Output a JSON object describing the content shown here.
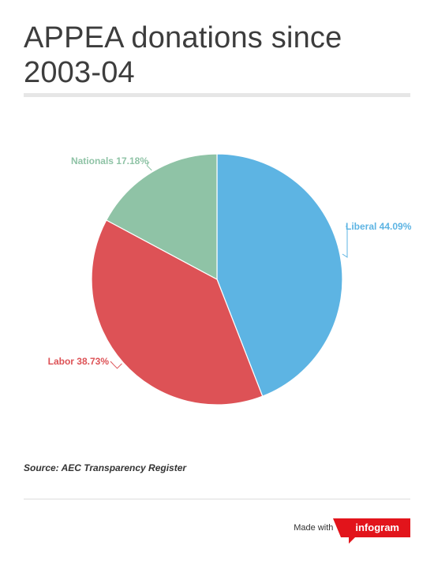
{
  "header": {
    "title": "APPEA donations since 2003-04"
  },
  "chart_data": {
    "type": "pie",
    "title": "APPEA donations since 2003-04",
    "slices": [
      {
        "label": "Liberal",
        "value": 44.09,
        "display": "Liberal 44.09%",
        "color": "#5db4e3"
      },
      {
        "label": "Labor",
        "value": 38.73,
        "display": "Labor 38.73%",
        "color": "#dd5256"
      },
      {
        "label": "Nationals",
        "value": 17.18,
        "display": "Nationals 17.18%",
        "color": "#8fc3a6"
      }
    ],
    "start_angle": "12 o'clock",
    "direction": "clockwise",
    "labels": "outside with leader lines"
  },
  "footer": {
    "source": "Source: AEC Transparency Register",
    "made_with": "Made with",
    "brand": "infogram",
    "brand_color": "#e2141b"
  }
}
